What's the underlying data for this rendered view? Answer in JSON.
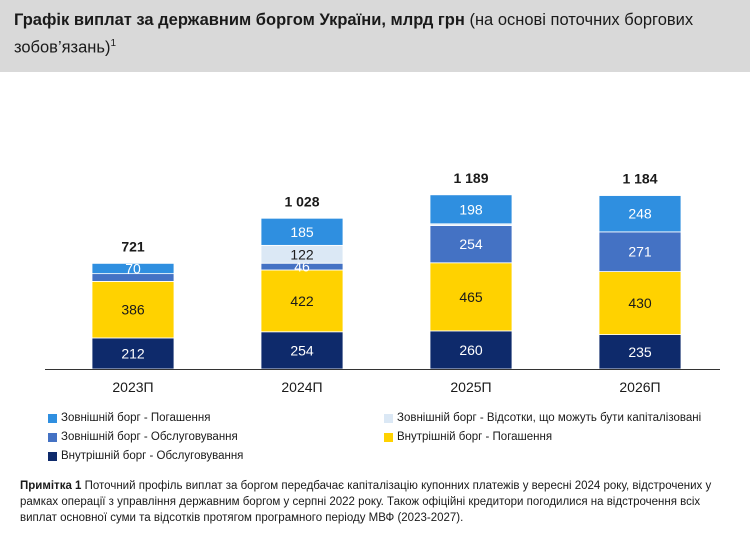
{
  "title": {
    "bold": "Графік виплат за державним боргом України, млрд грн",
    "normal": "(на основі поточних боргових зобов’язань)",
    "sup": "1"
  },
  "colors": {
    "ext_repay": "#2f8fe0",
    "ext_interest_cap": "#dbe8f5",
    "ext_service": "#4472c4",
    "int_repay": "#ffd200",
    "int_service": "#0e2a6b"
  },
  "chart_data": {
    "type": "bar",
    "stacked": true,
    "categories": [
      "2023П",
      "2024П",
      "2025П",
      "2026П"
    ],
    "totals": [
      "721",
      "1 028",
      "1 189",
      "1 184"
    ],
    "series": [
      {
        "key": "int_service",
        "name": "Внутрішній борг - Обслуговування",
        "values": [
          212,
          254,
          260,
          235
        ]
      },
      {
        "key": "int_repay",
        "name": "Внутрішній борг - Погашення",
        "values": [
          386,
          422,
          465,
          430
        ]
      },
      {
        "key": "ext_service",
        "name": "Зовнішній борг - Обслуговування",
        "values": [
          53,
          46,
          254,
          271
        ]
      },
      {
        "key": "ext_interest_cap",
        "name": "Зовнішній борг - Відсотки, що можуть бути капіталізовані",
        "values": [
          0,
          122,
          12,
          0
        ]
      },
      {
        "key": "ext_repay",
        "name": "Зовнішній борг - Погашення",
        "values": [
          70,
          185,
          198,
          248
        ]
      }
    ],
    "labels": [
      [
        "212",
        "254",
        "260",
        "235"
      ],
      [
        "386",
        "422",
        "465",
        "430"
      ],
      [
        "",
        "46",
        "254",
        "271"
      ],
      [
        "",
        "122",
        "",
        ""
      ],
      [
        "70",
        "185",
        "198",
        "248"
      ]
    ],
    "legend_order": [
      "ext_repay",
      "ext_interest_cap",
      "ext_service",
      "int_repay",
      "int_service"
    ],
    "legend_position": "bottom"
  },
  "note": {
    "label": "Примітка 1",
    "text": "Поточний профіль виплат за боргом передбачає капіталізацію купонних платежів у вересні 2024 року, відстрочених у рамках операції з управління державним боргом у серпні 2022 року.  Також офіційні кредитори погодилися на відстрочення всіх виплат основної суми та відсотків протягом програмного періоду МВФ (2023-2027)."
  }
}
